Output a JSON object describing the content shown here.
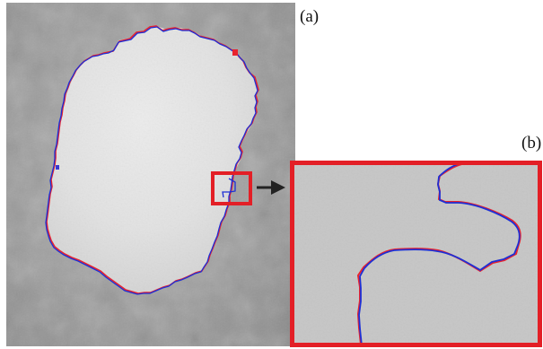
{
  "figure": {
    "label_a": "(a)",
    "label_b": "(b)"
  },
  "colors": {
    "contour_manual": "#e8232e",
    "contour_auto": "#1d2fd6",
    "zoom_box": "#e31f26",
    "arrow": "#222222"
  }
}
